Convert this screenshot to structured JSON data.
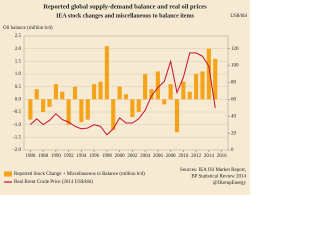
{
  "chart_data": {
    "type": "combo",
    "title": "Reported global supply-demand balance and real oil prices",
    "subtitle": "IEA stock changes and miscellaneous to balance items",
    "ylabel": "Oil balance (million b/d)",
    "y2label": "US$/bbl",
    "x": [
      1986,
      1987,
      1988,
      1989,
      1990,
      1991,
      1992,
      1993,
      1994,
      1995,
      1996,
      1997,
      1998,
      1999,
      2000,
      2001,
      2002,
      2003,
      2004,
      2005,
      2006,
      2007,
      2008,
      2009,
      2010,
      2011,
      2012,
      2013,
      2014,
      2015
    ],
    "series": [
      {
        "name": "Reported Stock Change + Miscellaneous to Balance (million b/d)",
        "type": "bar",
        "color": "#f5a31a",
        "values": [
          -0.8,
          0.4,
          -0.5,
          -0.3,
          0.6,
          0.3,
          -1.0,
          0.5,
          -0.9,
          -0.8,
          0.6,
          0.7,
          2.1,
          -1.2,
          0.5,
          0.2,
          -0.7,
          -0.5,
          1.0,
          0.4,
          1.1,
          -0.2,
          0.6,
          -1.3,
          0.7,
          0.3,
          1.0,
          1.1,
          2.0,
          1.6
        ]
      },
      {
        "name": "Real Brent Crude Price (2014 US$/bbl)",
        "type": "line",
        "color": "#c8102e",
        "axis": "y2",
        "values": [
          30,
          37,
          30,
          35,
          43,
          36,
          33,
          28,
          25,
          26,
          30,
          28,
          18,
          25,
          38,
          32,
          32,
          37,
          47,
          64,
          74,
          81,
          105,
          68,
          86,
          115,
          115,
          111,
          99,
          50
        ]
      }
    ],
    "xlim": [
      1985,
      2017
    ],
    "xticks": [
      1986,
      1988,
      1990,
      1992,
      1994,
      1996,
      1998,
      2000,
      2002,
      2004,
      2006,
      2008,
      2010,
      2012,
      2014,
      2016
    ],
    "ylim": [
      -2,
      2.5
    ],
    "yticks": [
      {
        "value": -2,
        "label": "-2.0"
      },
      -1.5,
      {
        "value": -1,
        "label": "-1.0"
      },
      -0.5,
      {
        "value": 0,
        "label": "0.0"
      },
      0.5,
      {
        "value": 1,
        "label": "1.0"
      },
      1.5,
      {
        "value": 2,
        "label": "2.0"
      },
      2.5
    ],
    "y2lim": [
      0,
      135
    ],
    "y2ticks": [
      0,
      20,
      40,
      60,
      80,
      100,
      120
    ],
    "grid": true,
    "sources": [
      "Sources: IEA Oil Market Report,",
      "BP Statistical Review 2014",
      "@JKempEnergy"
    ]
  }
}
